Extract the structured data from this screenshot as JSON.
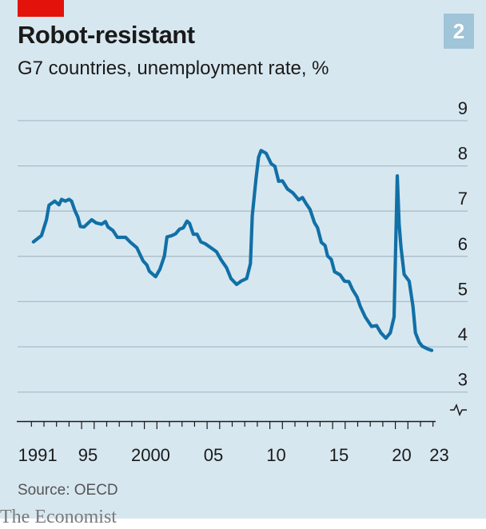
{
  "header": {
    "title": "Robot-resistant",
    "subtitle": "G7 countries, unemployment rate, %",
    "chart_number": "2"
  },
  "footer": {
    "source": "Source: OECD",
    "brand": "The Economist"
  },
  "colors": {
    "background": "#d7e7f0",
    "line": "#1170a6",
    "grid": "#a9bdc8",
    "accent": "#e3120b",
    "badge": "#a0c4d8"
  },
  "chart_data": {
    "type": "line",
    "title": "Robot-resistant",
    "subtitle": "G7 countries, unemployment rate, %",
    "xlabel": "",
    "ylabel": "%",
    "xlim": [
      1991,
      2023
    ],
    "ylim": [
      3,
      9
    ],
    "y_ticks": [
      "9",
      "8",
      "7",
      "6",
      "5",
      "4",
      "3"
    ],
    "y_tick_values": [
      9,
      8,
      7,
      6,
      5,
      4,
      3
    ],
    "x_tick_labels": [
      {
        "year": 1991,
        "label": "1991"
      },
      {
        "year": 1995,
        "label": "95"
      },
      {
        "year": 2000,
        "label": "2000"
      },
      {
        "year": 2005,
        "label": "05"
      },
      {
        "year": 2010,
        "label": "10"
      },
      {
        "year": 2015,
        "label": "15"
      },
      {
        "year": 2020,
        "label": "20"
      },
      {
        "year": 2023,
        "label": "23"
      }
    ],
    "grid": true,
    "y_axis_break": true,
    "series": [
      {
        "name": "G7 unemployment rate",
        "x": [
          1991.16,
          1991.8,
          1992.2,
          1992.4,
          1992.86,
          1993.2,
          1993.4,
          1993.7,
          1994.0,
          1994.2,
          1994.45,
          1994.7,
          1994.9,
          1995.2,
          1995.8,
          1996.15,
          1996.6,
          1996.9,
          1997.1,
          1997.5,
          1997.85,
          1998.5,
          1998.9,
          1999.4,
          1999.9,
          2000.2,
          2000.4,
          2000.9,
          2001.25,
          2001.6,
          2001.8,
          2002.2,
          2002.5,
          2002.8,
          2003.1,
          2003.4,
          2003.6,
          2003.9,
          2004.2,
          2004.5,
          2004.85,
          2005.45,
          2005.75,
          2006.1,
          2006.55,
          2006.9,
          2007.35,
          2007.7,
          2008.15,
          2008.45,
          2008.6,
          2008.9,
          2009.1,
          2009.3,
          2009.7,
          2010.1,
          2010.4,
          2010.7,
          2011.0,
          2011.4,
          2011.85,
          2012.3,
          2012.6,
          2012.9,
          2013.2,
          2013.55,
          2013.8,
          2014.1,
          2014.4,
          2014.6,
          2014.9,
          2015.15,
          2015.6,
          2015.95,
          2016.3,
          2016.6,
          2016.95,
          2017.2,
          2017.6,
          2018.1,
          2018.5,
          2018.85,
          2019.25,
          2019.6,
          2019.9,
          2020.15,
          2020.3,
          2020.45,
          2020.7,
          2021.1,
          2021.4,
          2021.6,
          2021.9,
          2022.15,
          2022.6,
          2022.9
        ],
        "y": [
          6.32,
          6.46,
          6.81,
          7.13,
          7.22,
          7.14,
          7.26,
          7.22,
          7.26,
          7.22,
          7.02,
          6.87,
          6.66,
          6.65,
          6.81,
          6.74,
          6.71,
          6.77,
          6.65,
          6.57,
          6.42,
          6.42,
          6.31,
          6.19,
          5.9,
          5.81,
          5.67,
          5.55,
          5.72,
          6.01,
          6.43,
          6.46,
          6.5,
          6.6,
          6.63,
          6.78,
          6.73,
          6.49,
          6.49,
          6.32,
          6.28,
          6.16,
          6.1,
          5.93,
          5.75,
          5.51,
          5.38,
          5.45,
          5.51,
          5.84,
          6.9,
          7.72,
          8.19,
          8.34,
          8.28,
          8.05,
          7.99,
          7.66,
          7.67,
          7.49,
          7.4,
          7.25,
          7.3,
          7.16,
          7.04,
          6.75,
          6.63,
          6.31,
          6.24,
          6.01,
          5.93,
          5.66,
          5.59,
          5.45,
          5.44,
          5.26,
          5.1,
          4.9,
          4.66,
          4.45,
          4.47,
          4.31,
          4.19,
          4.31,
          4.66,
          7.78,
          6.72,
          6.19,
          5.6,
          5.45,
          4.9,
          4.31,
          4.1,
          4.01,
          3.95,
          3.92
        ]
      }
    ]
  }
}
